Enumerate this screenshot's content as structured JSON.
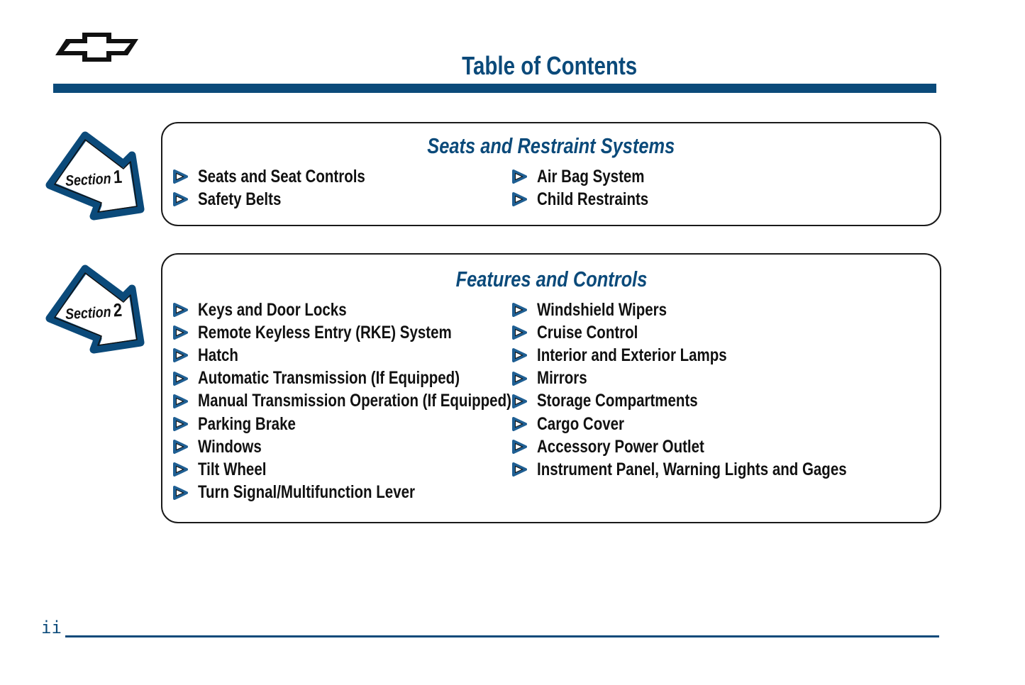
{
  "header": {
    "title": "Table of Contents",
    "logo": "bowtie-emblem"
  },
  "colors": {
    "accent": "#0b4a7a",
    "text": "#111111"
  },
  "sections": [
    {
      "label": "Section",
      "number": "1",
      "heading": "Seats and Restraint Systems",
      "left": [
        "Seats and Seat Controls",
        "Safety Belts"
      ],
      "right": [
        "Air Bag System",
        "Child Restraints"
      ]
    },
    {
      "label": "Section",
      "number": "2",
      "heading": "Features and Controls",
      "left": [
        "Keys and Door Locks",
        "Remote Keyless Entry (RKE) System",
        "Hatch",
        "Automatic Transmission (If Equipped)",
        "Manual Transmission Operation (If Equipped)",
        "Parking Brake",
        "Windows",
        "Tilt Wheel",
        "Turn Signal/Multifunction Lever"
      ],
      "right": [
        "Windshield Wipers",
        "Cruise Control",
        "Interior and Exterior Lamps",
        "Mirrors",
        "Storage Compartments",
        "Cargo Cover",
        "Accessory Power Outlet",
        "Instrument Panel, Warning Lights and Gages"
      ]
    }
  ],
  "footer": {
    "page_number": "ii"
  }
}
